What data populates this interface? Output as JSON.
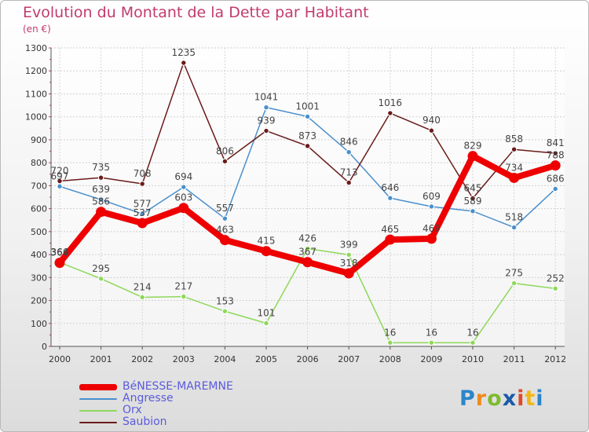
{
  "header": {
    "title": "Evolution du Montant de la Dette par Habitant",
    "unit_note": "(en €)"
  },
  "chart_data": {
    "type": "line",
    "x": [
      "2000",
      "2001",
      "2002",
      "2003",
      "2004",
      "2005",
      "2006",
      "2007",
      "2008",
      "2009",
      "2010",
      "2011",
      "2012"
    ],
    "ylim": [
      0,
      1300
    ],
    "yticks": [
      0,
      100,
      200,
      300,
      400,
      500,
      600,
      700,
      800,
      900,
      1000,
      1100,
      1200,
      1300
    ],
    "grid": true,
    "legend_position": "bottom-left",
    "series": [
      {
        "name": "BéNESSE-MAREMNE",
        "color": "#ee0000",
        "values": [
          364,
          586,
          537,
          603,
          463,
          415,
          367,
          318,
          465,
          469,
          829,
          734,
          788
        ]
      },
      {
        "name": "Angresse",
        "color": "#4a8fcc",
        "values": [
          697,
          639,
          577,
          694,
          557,
          1041,
          1001,
          846,
          646,
          609,
          589,
          518,
          686
        ]
      },
      {
        "name": "Orx",
        "color": "#8ed85a",
        "values": [
          366,
          295,
          214,
          217,
          153,
          101,
          426,
          399,
          16,
          16,
          16,
          275,
          252
        ]
      },
      {
        "name": "Saubion",
        "color": "#6b1a1a",
        "values": [
          720,
          735,
          708,
          1235,
          806,
          939,
          873,
          713,
          1016,
          940,
          645,
          858,
          841
        ]
      }
    ]
  },
  "logo": {
    "letters": [
      "P",
      "r",
      "o",
      "x",
      "i",
      "t",
      "i"
    ],
    "colors": [
      "#2b86c9",
      "#ef8a1a",
      "#7dbb2e",
      "#1a5aa8",
      "#e0492b",
      "#f0b81a",
      "#2b86c9"
    ]
  }
}
